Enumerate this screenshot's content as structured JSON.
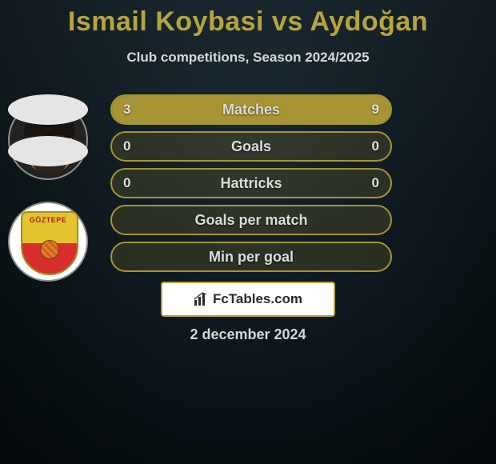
{
  "title": "Ismail Koybasi vs Aydoğan",
  "subtitle": "Club competitions, Season 2024/2025",
  "date": "2 december 2024",
  "brand": "FcTables.com",
  "team_logo_text": "GÖZTEPE",
  "colors": {
    "accent": "#b6a43c",
    "bar_border": "#a69434",
    "bar_fill": "#a69434",
    "bar_bg": "rgba(166,148,52,0.18)",
    "text_light": "#dcdcdc"
  },
  "bars": [
    {
      "label": "Matches",
      "left": "3",
      "right": "9",
      "left_pct": 25,
      "right_pct": 75,
      "has_values": true
    },
    {
      "label": "Goals",
      "left": "0",
      "right": "0",
      "left_pct": 0,
      "right_pct": 0,
      "has_values": true
    },
    {
      "label": "Hattricks",
      "left": "0",
      "right": "0",
      "left_pct": 0,
      "right_pct": 0,
      "has_values": true
    },
    {
      "label": "Goals per match",
      "left": "",
      "right": "",
      "left_pct": 0,
      "right_pct": 0,
      "has_values": false
    },
    {
      "label": "Min per goal",
      "left": "",
      "right": "",
      "left_pct": 0,
      "right_pct": 0,
      "has_values": false
    }
  ]
}
